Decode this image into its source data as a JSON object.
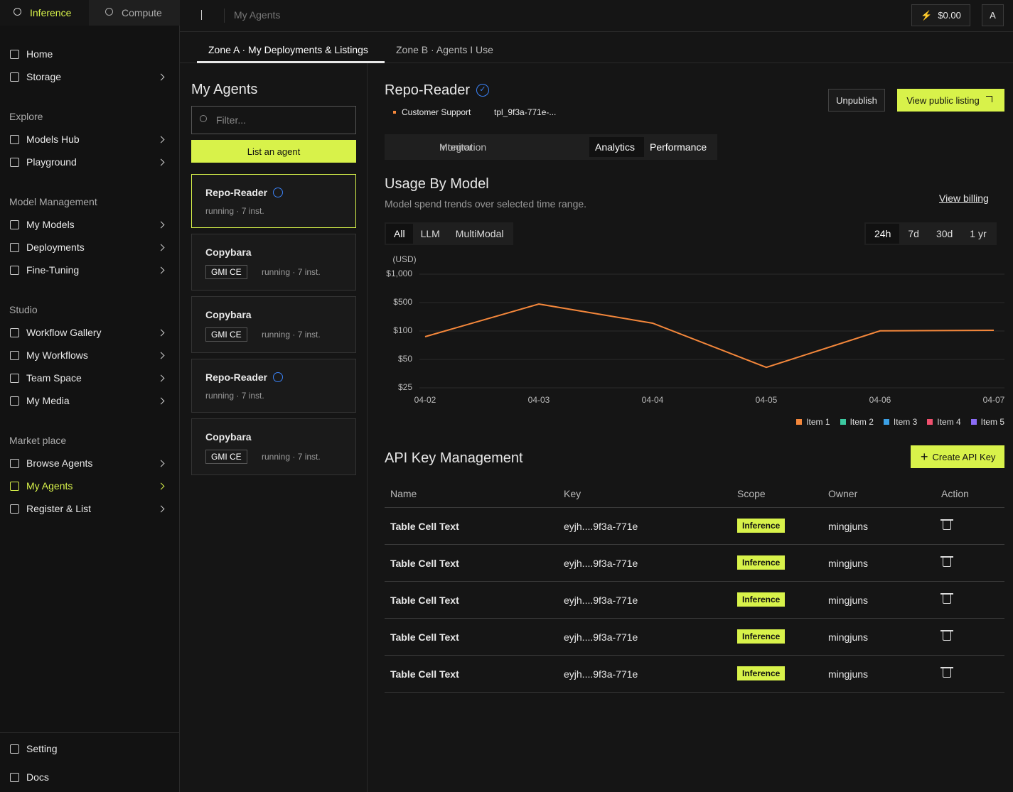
{
  "sidebar": {
    "tabs": [
      "Inference",
      "Compute"
    ],
    "top_items": [
      "Home",
      "Storage"
    ],
    "sections": [
      {
        "title": "Explore",
        "items": [
          "Models Hub",
          "Playground"
        ]
      },
      {
        "title": "Model Management",
        "items": [
          "My Models",
          "Deployments",
          "Fine-Tuning"
        ]
      },
      {
        "title": "Studio",
        "items": [
          "Workflow Gallery",
          "My Workflows",
          "Team Space",
          "My Media"
        ]
      },
      {
        "title": "Market place",
        "items": [
          "Browse Agents",
          "My Agents",
          "Register & List"
        ]
      }
    ],
    "bottom_items": [
      "Setting",
      "Docs"
    ]
  },
  "topbar": {
    "breadcrumb": "My Agents",
    "balance": "$0.00",
    "avatar": "A"
  },
  "zone_tabs": [
    "Zone A · My Deployments & Listings",
    "Zone B · Agents I Use"
  ],
  "agents_panel": {
    "title": "My Agents",
    "filter_placeholder": "Filter...",
    "list_button": "List an agent",
    "agents": [
      {
        "name": "Repo-Reader",
        "status": "running · 7 inst."
      },
      {
        "name": "Copybara",
        "badge": "GMI CE",
        "status": "running · 7 inst."
      },
      {
        "name": "Copybara",
        "badge": "GMI CE",
        "status": "running · 7 inst."
      },
      {
        "name": "Repo-Reader",
        "status": "running · 7 inst."
      },
      {
        "name": "Copybara",
        "badge": "GMI CE",
        "status": "running · 7 inst."
      }
    ]
  },
  "detail": {
    "name": "Repo-Reader",
    "tag": "Customer Support",
    "template_id": "tpl_9f3a-771e-...",
    "unpublish": "Unpublish",
    "view_listing": "View public listing",
    "tabs": [
      "Monitor",
      "Integration",
      "Analytics",
      "Performance"
    ]
  },
  "usage": {
    "title": "Usage By Model",
    "subtitle": "Model spend trends over selected time range.",
    "billing_link": "View billing",
    "filters": [
      "All",
      "LLM",
      "MultiModal"
    ],
    "ranges": [
      "24h",
      "7d",
      "30d",
      "1 yr"
    ]
  },
  "chart_data": {
    "type": "line",
    "y_label": "(USD)",
    "categories": [
      "04-02",
      "04-03",
      "04-04",
      "04-05",
      "04-06",
      "04-07"
    ],
    "series": [
      {
        "name": "Item 1",
        "color": "#f4873b",
        "values": [
          90,
          480,
          210,
          43,
          102,
          110
        ]
      },
      {
        "name": "Item 2",
        "color": "#3cc9a0",
        "values": [
          null,
          null,
          null,
          null,
          null,
          null
        ]
      },
      {
        "name": "Item 3",
        "color": "#3ba0e6",
        "values": [
          null,
          null,
          null,
          null,
          null,
          null
        ]
      },
      {
        "name": "Item 4",
        "color": "#f0506e",
        "values": [
          null,
          null,
          null,
          null,
          null,
          null
        ]
      },
      {
        "name": "Item 5",
        "color": "#8b6cf6",
        "values": [
          null,
          null,
          null,
          null,
          null,
          null
        ]
      }
    ],
    "ylim": [
      25,
      1000
    ],
    "yticks": [
      {
        "value": 25,
        "label": "$25"
      },
      {
        "value": 50,
        "label": "$50"
      },
      {
        "value": 100,
        "label": "$100"
      },
      {
        "value": 500,
        "label": "$500"
      },
      {
        "value": 1000,
        "label": "$1,000"
      }
    ],
    "y_scale": "tick-spaced",
    "grid": true,
    "legend": "bottom-right"
  },
  "api_keys": {
    "title": "API Key Management",
    "create_button": "Create API Key",
    "columns": [
      "Name",
      "Key",
      "Scope",
      "Owner",
      "Action"
    ],
    "rows": [
      [
        "Table Cell Text",
        "eyjh....9f3a-771e",
        "Inference",
        "mingjuns"
      ],
      [
        "Table Cell Text",
        "eyjh....9f3a-771e",
        "Inference",
        "mingjuns"
      ],
      [
        "Table Cell Text",
        "eyjh....9f3a-771e",
        "Inference",
        "mingjuns"
      ],
      [
        "Table Cell Text",
        "eyjh....9f3a-771e",
        "Inference",
        "mingjuns"
      ],
      [
        "Table Cell Text",
        "eyjh....9f3a-771e",
        "Inference",
        "mingjuns"
      ]
    ]
  }
}
